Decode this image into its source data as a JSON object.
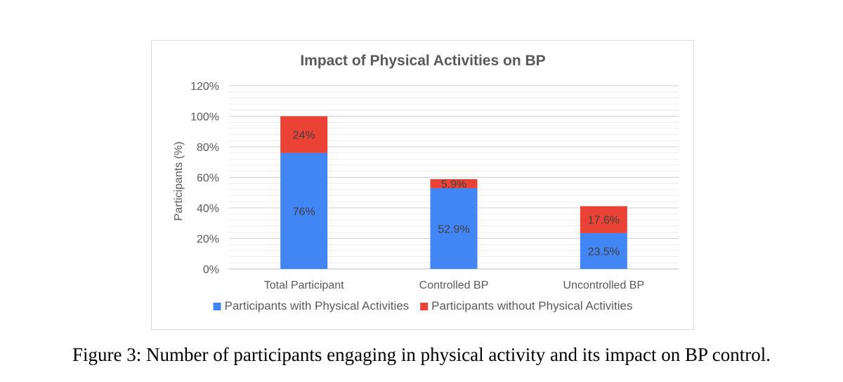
{
  "chart_data": {
    "type": "bar",
    "stacked": true,
    "title": "Impact of Physical Activities on BP",
    "ylabel": "Participants (%)",
    "xlabel": "",
    "categories": [
      "Total Participant",
      "Controlled BP",
      "Uncontrolled BP"
    ],
    "ylim": [
      0,
      120
    ],
    "y_ticks": [
      0,
      20,
      40,
      60,
      80,
      100,
      120
    ],
    "y_tick_labels": [
      "0%",
      "20%",
      "40%",
      "60%",
      "80%",
      "100%",
      "120%"
    ],
    "grid": true,
    "legend_position": "bottom",
    "series": [
      {
        "name": "Participants with Physical Activities",
        "color": "#4285f4",
        "values": [
          76,
          52.9,
          23.5
        ],
        "labels": [
          "76%",
          "52.9%",
          "23.5%"
        ]
      },
      {
        "name": "Participants without Physical Activities",
        "color": "#ea4335",
        "values": [
          24,
          5.9,
          17.6
        ],
        "labels": [
          "24%",
          "5.9%",
          "17.6%"
        ]
      }
    ]
  },
  "caption": "Figure 3: Number of participants engaging in physical activity and its impact on BP control."
}
